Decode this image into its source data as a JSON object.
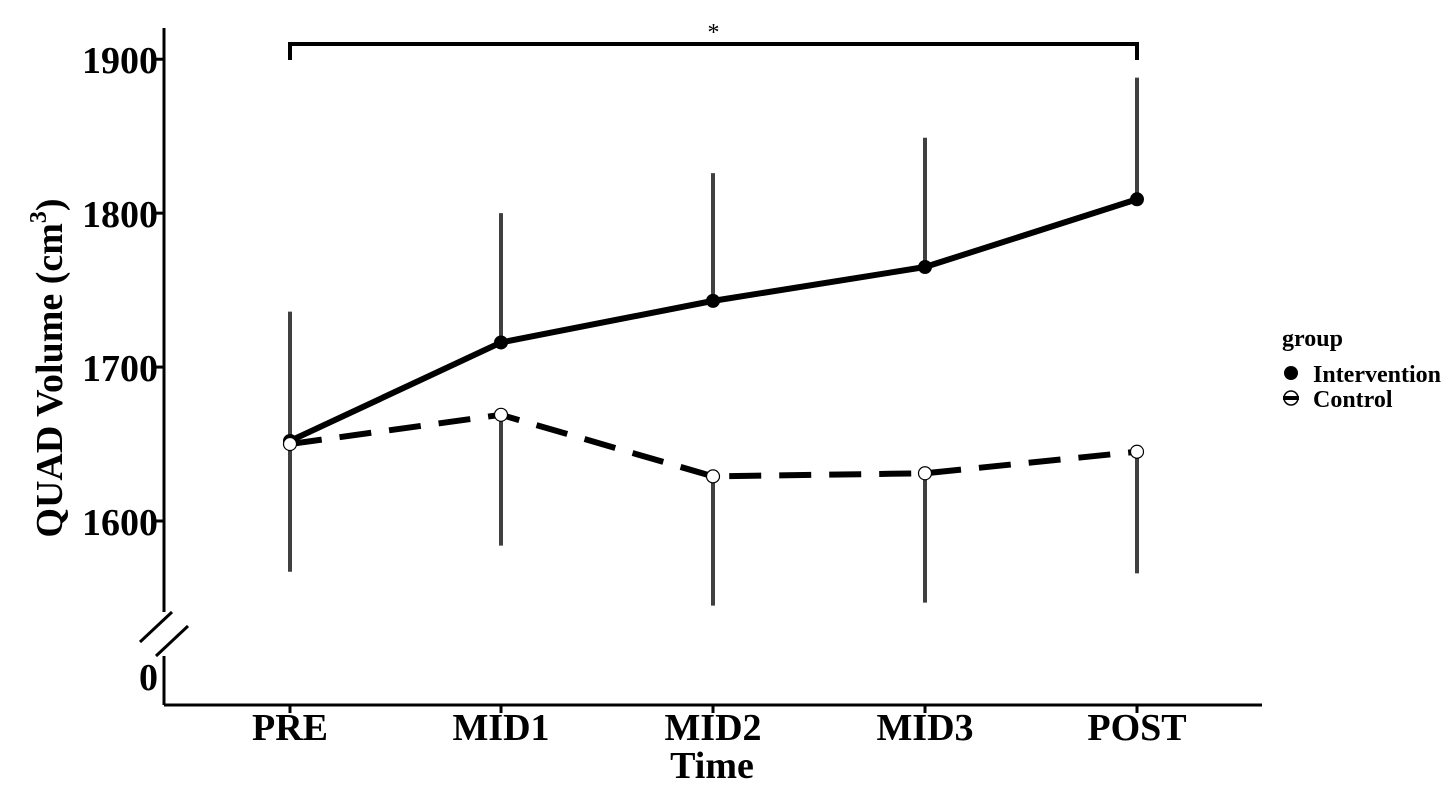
{
  "chart_data": {
    "type": "line",
    "xlabel": "Time",
    "ylabel": "QUAD Volume (cm",
    "ylabel_superscript": "3",
    "ylabel_close": ")",
    "categories": [
      "PRE",
      "MID1",
      "MID2",
      "MID3",
      "POST"
    ],
    "y_ticks": [
      1600,
      1700,
      1800,
      1900
    ],
    "y_break_tick": "0",
    "ylim": [
      1540,
      1920
    ],
    "axis_break": true,
    "grid": false,
    "legend": {
      "title": "group",
      "placement": "right",
      "entries": [
        "Intervention",
        "Control"
      ]
    },
    "series": [
      {
        "name": "Intervention",
        "marker": "filled-circle",
        "line": "solid",
        "values": [
          1652,
          1716,
          1743,
          1765,
          1809
        ],
        "error_upper": [
          1736,
          1800,
          1826,
          1849,
          1888
        ],
        "error_lower": [
          1652,
          1716,
          1743,
          1765,
          1809
        ]
      },
      {
        "name": "Control",
        "marker": "open-circle",
        "line": "dashed",
        "values": [
          1650,
          1669,
          1629,
          1631,
          1645
        ],
        "error_upper": [
          1650,
          1669,
          1629,
          1631,
          1645
        ],
        "error_lower": [
          1567,
          1584,
          1545,
          1547,
          1566
        ]
      }
    ],
    "annotation": {
      "text": "*",
      "from": "PRE",
      "to": "POST"
    },
    "colors": {
      "line": "#000000",
      "error_bar": "#404040",
      "background": "#ffffff"
    }
  }
}
